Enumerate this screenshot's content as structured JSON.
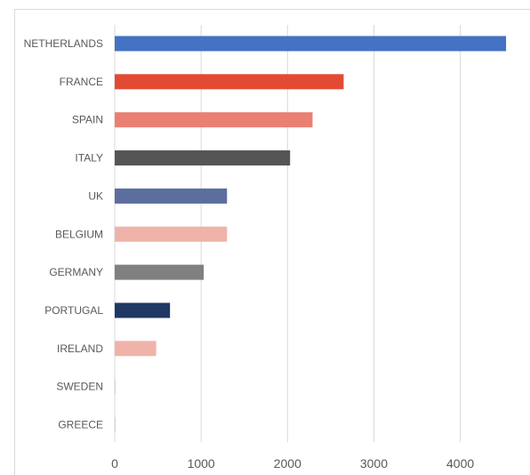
{
  "chart_data": {
    "type": "bar",
    "orientation": "horizontal",
    "categories": [
      "NETHERLANDS",
      "FRANCE",
      "SPAIN",
      "ITALY",
      "UK",
      "BELGIUM",
      "GERMANY",
      "PORTUGAL",
      "IRELAND",
      "SWEDEN",
      "GREECE"
    ],
    "values": [
      4530,
      2650,
      2290,
      2030,
      1300,
      1300,
      1030,
      640,
      480,
      0,
      0
    ],
    "colors": [
      "#4472C4",
      "#E24A33",
      "#E98072",
      "#555555",
      "#5B6E9E",
      "#F0B3AA",
      "#808080",
      "#1F3864",
      "#F0B3AA",
      "#C9C9C9",
      "#C9C9C9"
    ],
    "xlim": [
      0,
      4500
    ],
    "xticks": [
      0,
      1000,
      2000,
      3000,
      4000
    ],
    "grid": true,
    "title": "",
    "xlabel": "",
    "ylabel": ""
  }
}
